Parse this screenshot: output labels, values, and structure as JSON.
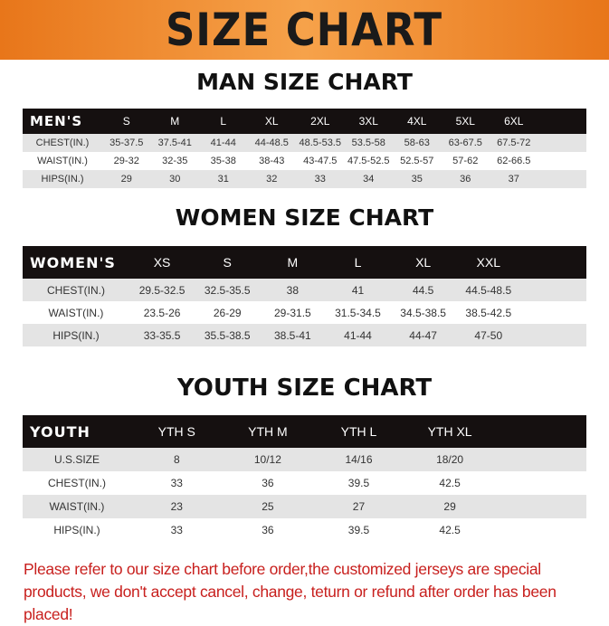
{
  "title": "SIZE CHART",
  "men": {
    "title": "MAN SIZE CHART",
    "header": "MEN'S",
    "sizes": [
      "S",
      "M",
      "L",
      "XL",
      "2XL",
      "3XL",
      "4XL",
      "5XL",
      "6XL"
    ],
    "rows": [
      {
        "label": "CHEST(IN.)",
        "values": [
          "35-37.5",
          "37.5-41",
          "41-44",
          "44-48.5",
          "48.5-53.5",
          "53.5-58",
          "58-63",
          "63-67.5",
          "67.5-72"
        ]
      },
      {
        "label": "WAIST(IN.)",
        "values": [
          "29-32",
          "32-35",
          "35-38",
          "38-43",
          "43-47.5",
          "47.5-52.5",
          "52.5-57",
          "57-62",
          "62-66.5"
        ]
      },
      {
        "label": "HIPS(IN.)",
        "values": [
          "29",
          "30",
          "31",
          "32",
          "33",
          "34",
          "35",
          "36",
          "37"
        ]
      }
    ]
  },
  "women": {
    "title": "WOMEN SIZE CHART",
    "header": "WOMEN'S",
    "sizes": [
      "XS",
      "S",
      "M",
      "L",
      "XL",
      "XXL"
    ],
    "rows": [
      {
        "label": "CHEST(IN.)",
        "values": [
          "29.5-32.5",
          "32.5-35.5",
          "38",
          "41",
          "44.5",
          "44.5-48.5"
        ]
      },
      {
        "label": "WAIST(IN.)",
        "values": [
          "23.5-26",
          "26-29",
          "29-31.5",
          "31.5-34.5",
          "34.5-38.5",
          "38.5-42.5"
        ]
      },
      {
        "label": "HIPS(IN.)",
        "values": [
          "33-35.5",
          "35.5-38.5",
          "38.5-41",
          "41-44",
          "44-47",
          "47-50"
        ]
      }
    ]
  },
  "youth": {
    "title": "YOUTH SIZE CHART",
    "header": "YOUTH",
    "sizes": [
      "YTH S",
      "YTH M",
      "YTH L",
      "YTH XL"
    ],
    "rows": [
      {
        "label": "U.S.SIZE",
        "values": [
          "8",
          "10/12",
          "14/16",
          "18/20"
        ]
      },
      {
        "label": "CHEST(IN.)",
        "values": [
          "33",
          "36",
          "39.5",
          "42.5"
        ]
      },
      {
        "label": "WAIST(IN.)",
        "values": [
          "23",
          "25",
          "27",
          "29"
        ]
      },
      {
        "label": "HIPS(IN.)",
        "values": [
          "33",
          "36",
          "39.5",
          "42.5"
        ]
      }
    ]
  },
  "note": "Please refer to our size chart before order,the customized jerseys are special products, we don't accept cancel, change, teturn or refund after order has been placed!"
}
